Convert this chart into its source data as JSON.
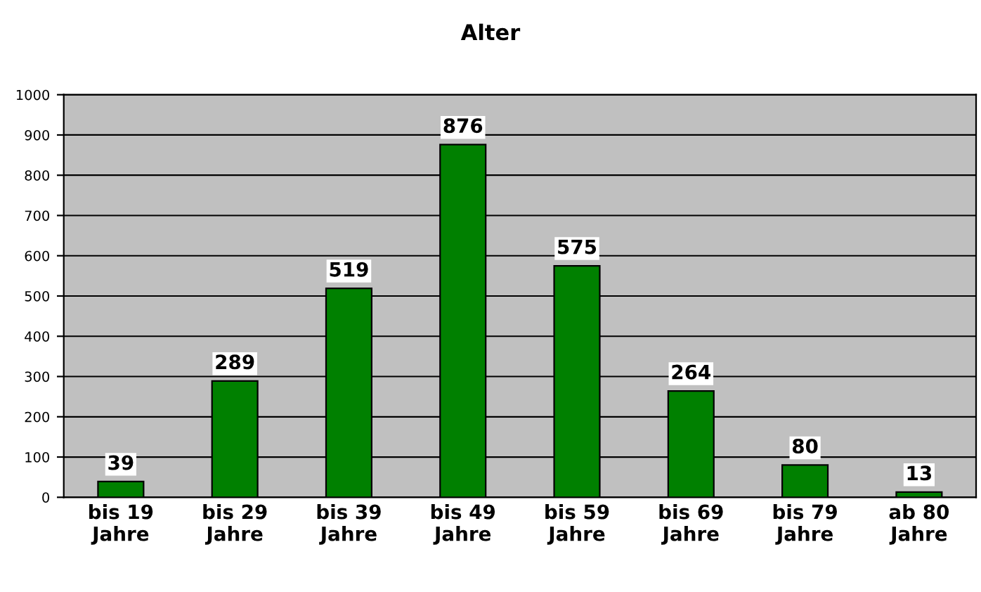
{
  "chart_data": {
    "type": "bar",
    "title": "Alter",
    "categories": [
      "bis 19\nJahre",
      "bis 29\nJahre",
      "bis 39\nJahre",
      "bis 49\nJahre",
      "bis 59\nJahre",
      "bis 69\nJahre",
      "bis 79\nJahre",
      "ab 80\nJahre"
    ],
    "values": [
      39,
      289,
      519,
      876,
      575,
      264,
      80,
      13
    ],
    "color": "#008000",
    "ylim": [
      0,
      1000
    ],
    "yticks": [
      0,
      100,
      200,
      300,
      400,
      500,
      600,
      700,
      800,
      900,
      1000
    ],
    "grid": "y",
    "data_labels": true
  }
}
